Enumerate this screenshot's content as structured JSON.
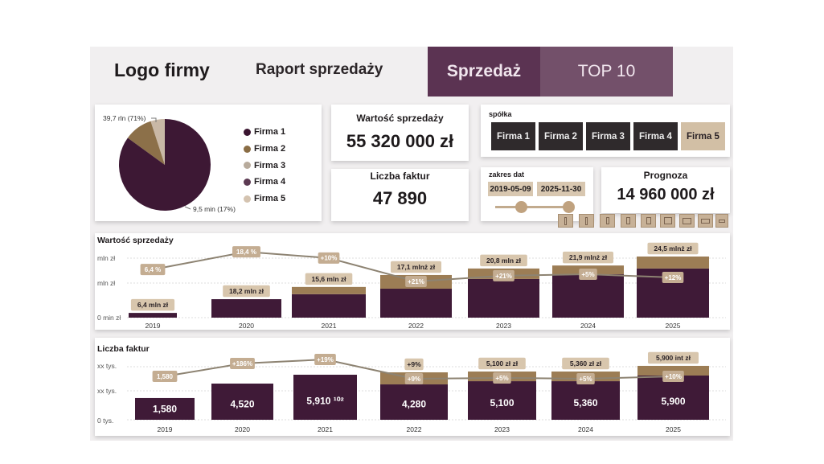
{
  "header": {
    "logo": "Logo firmy",
    "title": "Raport sprzedaży",
    "tabs": [
      {
        "label": "Sprzedaż",
        "active": true
      },
      {
        "label": "TOP 10",
        "active": false
      }
    ]
  },
  "pie": {
    "slices": [
      {
        "name": "Firma 1",
        "value": 85,
        "color": "#3d1834"
      },
      {
        "name": "Firma 2",
        "value": 10,
        "color": "#8c7049"
      },
      {
        "name": "Firma 3",
        "value": 5,
        "color": "#c9b8a6"
      }
    ],
    "labels": [
      "39,7 rln (71%)",
      "9,5 min (17%)"
    ],
    "legend": [
      {
        "label": "Firma 1",
        "color": "#3a1530"
      },
      {
        "label": "Firma 2",
        "color": "#8a6d45"
      },
      {
        "label": "Firma 3",
        "color": "#b8ab9c"
      },
      {
        "label": "Firma 4",
        "color": "#5c3a52"
      },
      {
        "label": "Firma 5",
        "color": "#d4c3b0"
      }
    ]
  },
  "kpi": {
    "sales": {
      "title": "Wartość sprzedaży",
      "value": "55 320 000 zł"
    },
    "invoices": {
      "title": "Liczba faktur",
      "value": "47 890"
    },
    "forecast": {
      "title": "Prognoza",
      "value": "14 960 000 zł"
    }
  },
  "filters": {
    "company": {
      "label": "spółka",
      "options": [
        "Firma 1",
        "Firma 2",
        "Firma 3",
        "Firma 4",
        "Firma 5"
      ],
      "selected": "Firma 5"
    },
    "dates": {
      "label": "zakres dat",
      "from": "2019-05-09",
      "to": "2025-11-30"
    },
    "view_buttons": [
      "view-1",
      "view-2",
      "view-3",
      "view-4",
      "view-5",
      "view-6",
      "view-7",
      "view-8",
      "view-9"
    ]
  },
  "colors": {
    "primary": "#3f1a37",
    "secondary": "#9c7d55",
    "label_bg": "#cdb9a0",
    "line": "#8d8372",
    "accent": "#5b3352"
  },
  "chart_data": [
    {
      "type": "bar",
      "title": "Wartość sprzedaży",
      "categories": [
        "2019",
        "2020",
        "2021",
        "2022",
        "2023",
        "2024",
        "2025"
      ],
      "y_ticks": [
        "0 min zł",
        "mln zł",
        "mln zł"
      ],
      "ylim": [
        0,
        27
      ],
      "series": [
        {
          "values": [
            1.9,
            7.4,
            9.4,
            11.6,
            15.5,
            17.4,
            19.7
          ]
        },
        {
          "values": [
            0,
            0,
            2.9,
            5.5,
            4.2,
            3.5,
            4.8
          ]
        }
      ],
      "bar_labels": [
        "6,4 mln zł",
        "18,2 mln zł",
        "15,6 mln zł",
        "17,1 mlnż zł",
        "20,8 mln zł",
        "21,9 mlnż zł",
        "24,5 mlnż zł"
      ],
      "line": {
        "values": [
          19.3,
          26.4,
          23.9,
          14.5,
          16.8,
          17.4,
          16.1
        ],
        "labels": [
          "6,4 %",
          "18,4 %",
          "+10%",
          "+21%",
          "+21%",
          "+5%",
          "+12%"
        ]
      }
    },
    {
      "type": "bar",
      "title": "Liczba faktur",
      "categories": [
        "2019",
        "2020",
        "2021",
        "2022",
        "2023",
        "2024",
        "2025"
      ],
      "y_ticks": [
        "0 tys.",
        "xx tys.",
        "xx tys."
      ],
      "ylim": [
        0,
        8000
      ],
      "series": [
        {
          "values": [
            2380,
            3960,
            4930,
            3870,
            4220,
            4220,
            4840
          ]
        },
        {
          "values": [
            0,
            0,
            0,
            1320,
            1060,
            1060,
            1060
          ]
        }
      ],
      "inner_labels": [
        "1,580",
        "4,520",
        "5,910 ¹⁰²",
        "4,280",
        "5,100",
        "5,360",
        "5,900"
      ],
      "bar_labels": [
        "",
        "",
        "",
        "+9%",
        "5,100 zł zł",
        "5,360 zł zł",
        "5,900 int zł"
      ],
      "line": {
        "values": [
          4750,
          6160,
          6600,
          4490,
          4580,
          4490,
          4750
        ],
        "labels": [
          "1,580",
          "+186%",
          "+19%",
          "+9%",
          "+5%",
          "+5%",
          "+10%"
        ]
      }
    }
  ]
}
